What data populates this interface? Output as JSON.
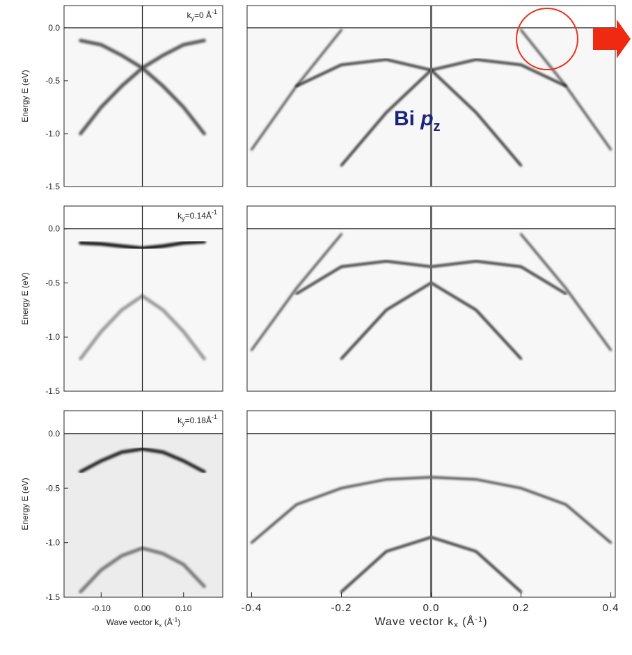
{
  "chart_data": [
    {
      "type": "line",
      "annotation": {
        "base": "k",
        "sub": "y",
        "main": "=0 Å",
        "sup": "-1"
      },
      "ylabel": "Energy E (eV)",
      "xlim": [
        -0.19,
        0.195
      ],
      "ylim": [
        -1.5,
        0.21
      ],
      "yticks": [
        {
          "value": 0,
          "label": "0.0"
        },
        {
          "value": -0.5,
          "label": "-0.5"
        },
        {
          "value": -1,
          "label": "-1.0"
        },
        {
          "value": -1.5,
          "label": "-1.5"
        }
      ],
      "x": [
        -0.15,
        -0.1,
        -0.05,
        0,
        0.05,
        0.1,
        0.15
      ],
      "series": [
        {
          "color": "#555555",
          "values": [
            -0.12,
            -0.16,
            -0.26,
            -0.38,
            -0.55,
            -0.75,
            -1.0
          ]
        },
        {
          "color": "#555555",
          "values": [
            -1.0,
            -0.75,
            -0.55,
            -0.38,
            -0.26,
            -0.16,
            -0.12
          ]
        }
      ]
    },
    {
      "type": "line",
      "xlim": [
        -0.41,
        0.41
      ],
      "ylim": [
        -1.5,
        0.21
      ],
      "annotation": {
        "main": "Bi ",
        "italic": "p",
        "sub": "z"
      },
      "x": [
        -0.4,
        -0.3,
        -0.2,
        -0.1,
        0,
        0.1,
        0.2,
        0.3,
        0.4
      ],
      "series": [
        {
          "color": "#444444",
          "values": [
            -1.15,
            -0.55,
            -0.02,
            null,
            null,
            null,
            -0.02,
            -0.55,
            -1.15
          ]
        },
        {
          "color": "#111111",
          "values": [
            null,
            -0.55,
            -0.35,
            -0.3,
            -0.4,
            -0.3,
            -0.35,
            -0.55,
            null
          ]
        },
        {
          "color": "#111111",
          "values": [
            null,
            null,
            -1.3,
            -0.8,
            -0.4,
            -0.8,
            -1.3,
            null,
            null
          ]
        }
      ]
    },
    {
      "type": "line",
      "annotation": {
        "base": "k",
        "sub": "y",
        "main": "=0.14Å",
        "sup": "-1"
      },
      "ylabel": "Energy E (eV)",
      "xlim": [
        -0.19,
        0.195
      ],
      "ylim": [
        -1.5,
        0.21
      ],
      "yticks": [
        {
          "value": 0,
          "label": "0.0"
        },
        {
          "value": -0.5,
          "label": "-0.5"
        },
        {
          "value": -1,
          "label": "-1.0"
        },
        {
          "value": -1.5,
          "label": "-1.5"
        }
      ],
      "x": [
        -0.15,
        -0.1,
        -0.05,
        0,
        0.05,
        0.1,
        0.15
      ],
      "series": [
        {
          "color": "#111111",
          "values": [
            -0.13,
            -0.14,
            -0.16,
            -0.18,
            -0.16,
            -0.13,
            -0.12
          ]
        },
        {
          "color": "#999999",
          "values": [
            -1.2,
            -0.95,
            -0.75,
            -0.62,
            -0.75,
            -0.95,
            -1.2
          ]
        }
      ]
    },
    {
      "type": "line",
      "xlim": [
        -0.41,
        0.41
      ],
      "ylim": [
        -1.5,
        0.21
      ],
      "x": [
        -0.4,
        -0.3,
        -0.2,
        -0.1,
        0,
        0.1,
        0.2,
        0.3,
        0.4
      ],
      "series": [
        {
          "color": "#444444",
          "values": [
            -1.12,
            -0.55,
            -0.05,
            null,
            null,
            null,
            -0.05,
            -0.55,
            -1.12
          ]
        },
        {
          "color": "#111111",
          "values": [
            null,
            -0.6,
            -0.35,
            -0.3,
            -0.35,
            -0.3,
            -0.35,
            -0.6,
            null
          ]
        },
        {
          "color": "#111111",
          "values": [
            null,
            null,
            -1.2,
            -0.75,
            -0.5,
            -0.75,
            -1.2,
            null,
            null
          ]
        }
      ]
    },
    {
      "type": "line",
      "annotation": {
        "base": "k",
        "sub": "y",
        "main": "=0.18Å",
        "sup": "-1"
      },
      "ylabel": "Energy E (eV)",
      "xlim": [
        -0.19,
        0.195
      ],
      "ylim": [
        -1.5,
        0.21
      ],
      "yticks": [
        {
          "value": 0,
          "label": "0.0"
        },
        {
          "value": -0.5,
          "label": "-0.5"
        },
        {
          "value": -1,
          "label": "-1.0"
        },
        {
          "value": -1.5,
          "label": "-1.5"
        }
      ],
      "xticks": [
        {
          "value": -0.1,
          "label": "-0.10"
        },
        {
          "value": 0,
          "label": "0.00"
        },
        {
          "value": 0.1,
          "label": "0.10"
        }
      ],
      "xlabel": {
        "main": "Wave vector k",
        "sub": "x",
        "open": " (Å",
        "sup": "-1",
        "close": ")"
      },
      "x": [
        -0.15,
        -0.1,
        -0.05,
        0,
        0.05,
        0.1,
        0.15
      ],
      "series": [
        {
          "color": "#222222",
          "values": [
            -0.35,
            -0.25,
            -0.17,
            -0.14,
            -0.17,
            -0.25,
            -0.35
          ]
        },
        {
          "color": "#777777",
          "values": [
            -1.45,
            -1.25,
            -1.12,
            -1.05,
            -1.1,
            -1.2,
            -1.4
          ]
        }
      ]
    },
    {
      "type": "line",
      "xlim": [
        -0.41,
        0.41
      ],
      "ylim": [
        -1.5,
        0.21
      ],
      "xticks": [
        {
          "value": -0.4,
          "label": "-0.4"
        },
        {
          "value": -0.2,
          "label": "-0.2"
        },
        {
          "value": 0,
          "label": "0.0"
        },
        {
          "value": 0.2,
          "label": "0.2"
        },
        {
          "value": 0.4,
          "label": "0.4"
        }
      ],
      "xlabel": {
        "main": "Wave vector k",
        "sub": "x",
        "open": " (Å",
        "sup": "-1",
        "close": ")"
      },
      "x": [
        -0.4,
        -0.3,
        -0.2,
        -0.1,
        0,
        0.1,
        0.2,
        0.3,
        0.4
      ],
      "series": [
        {
          "color": "#333333",
          "values": [
            -1.0,
            -0.65,
            -0.5,
            -0.42,
            -0.4,
            -0.42,
            -0.5,
            -0.65,
            -1.0
          ]
        },
        {
          "color": "#111111",
          "values": [
            null,
            null,
            -1.45,
            -1.08,
            -0.95,
            -1.08,
            -1.45,
            null,
            null
          ]
        }
      ]
    }
  ]
}
